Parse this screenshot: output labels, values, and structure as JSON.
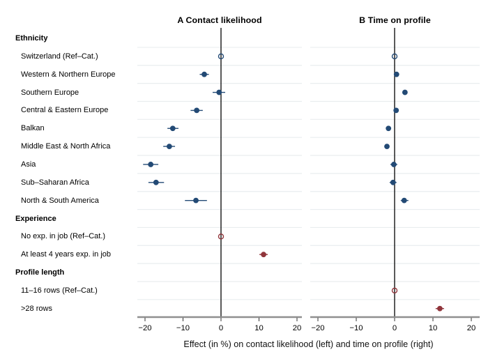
{
  "chart_data": {
    "type": "forest-dot-plot",
    "xlabel": "Effect (in %) on contact likelihood (left) and time on profile (right)",
    "x_ticks": [
      -20,
      -10,
      0,
      10,
      20
    ],
    "x_range": [
      -22,
      22
    ],
    "grid": "horizontal-row-separators",
    "panels": [
      {
        "label": "A Contact likelihood",
        "measure": "contact_likelihood"
      },
      {
        "label": "B Time on profile",
        "measure": "time_on_profile"
      }
    ],
    "colors": {
      "navy": "#234a75",
      "maroon": "#90353b"
    },
    "rows": [
      {
        "label": "Ethnicity",
        "header": true
      },
      {
        "label": "Switzerland (Ref–Cat.)",
        "color": "navy",
        "contact_likelihood": {
          "est": 0,
          "ref": true
        },
        "time_on_profile": {
          "est": 0,
          "ref": true
        }
      },
      {
        "label": "Western & Northern Europe",
        "color": "navy",
        "contact_likelihood": {
          "est": -4.4,
          "lo": -5.6,
          "hi": -3.2
        },
        "time_on_profile": {
          "est": 0.5,
          "lo": -0.1,
          "hi": 1.1
        }
      },
      {
        "label": "Southern Europe",
        "color": "navy",
        "contact_likelihood": {
          "est": -0.5,
          "lo": -2.2,
          "hi": 1.1
        },
        "time_on_profile": {
          "est": 2.7,
          "lo": 2.1,
          "hi": 3.3
        }
      },
      {
        "label": "Central & Eastern Europe",
        "color": "navy",
        "contact_likelihood": {
          "est": -6.4,
          "lo": -8.0,
          "hi": -4.8
        },
        "time_on_profile": {
          "est": 0.4,
          "lo": -0.2,
          "hi": 1.0
        }
      },
      {
        "label": "Balkan",
        "color": "navy",
        "contact_likelihood": {
          "est": -12.7,
          "lo": -14.1,
          "hi": -11.2
        },
        "time_on_profile": {
          "est": -1.6,
          "lo": -2.2,
          "hi": -1.0
        }
      },
      {
        "label": "Middle East & North Africa",
        "color": "navy",
        "contact_likelihood": {
          "est": -13.6,
          "lo": -15.2,
          "hi": -12.1
        },
        "time_on_profile": {
          "est": -2.0,
          "lo": -2.6,
          "hi": -1.4
        }
      },
      {
        "label": "Asia",
        "color": "navy",
        "contact_likelihood": {
          "est": -18.5,
          "lo": -20.5,
          "hi": -16.5
        },
        "time_on_profile": {
          "est": -0.2,
          "lo": -1.1,
          "hi": 0.7
        }
      },
      {
        "label": "Sub–Saharan Africa",
        "color": "navy",
        "contact_likelihood": {
          "est": -17.1,
          "lo": -19.1,
          "hi": -15.0
        },
        "time_on_profile": {
          "est": -0.4,
          "lo": -1.3,
          "hi": 0.5
        }
      },
      {
        "label": "North & South America",
        "color": "navy",
        "contact_likelihood": {
          "est": -6.6,
          "lo": -9.5,
          "hi": -3.7
        },
        "time_on_profile": {
          "est": 2.5,
          "lo": 1.6,
          "hi": 3.6
        }
      },
      {
        "label": "Experience",
        "header": true
      },
      {
        "label": "No exp. in job (Ref–Cat.)",
        "color": "maroon",
        "contact_likelihood": {
          "est": 0,
          "ref": true
        }
      },
      {
        "label": "At least 4 years exp. in job",
        "color": "maroon",
        "contact_likelihood": {
          "est": 11.2,
          "lo": 10.1,
          "hi": 12.3
        }
      },
      {
        "label": "Profile length",
        "header": true
      },
      {
        "label": "11–16 rows (Ref–Cat.)",
        "color": "maroon",
        "time_on_profile": {
          "est": 0,
          "ref": true
        }
      },
      {
        "label": ">28 rows",
        "color": "maroon",
        "time_on_profile": {
          "est": 11.8,
          "lo": 10.7,
          "hi": 12.9
        }
      }
    ]
  }
}
